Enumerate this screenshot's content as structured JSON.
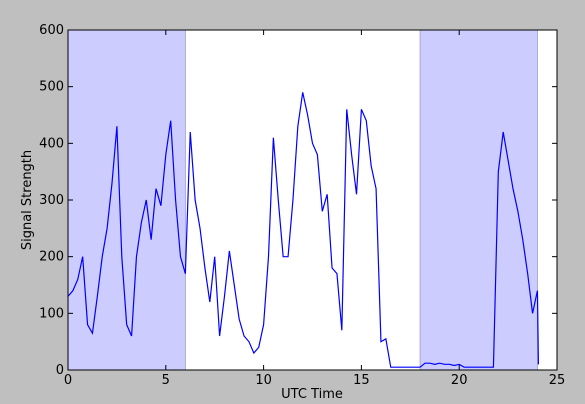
{
  "chart_data": {
    "type": "line",
    "xlabel": "UTC Time",
    "ylabel": "Signal Strength",
    "x": [
      0,
      0.25,
      0.5,
      0.75,
      1,
      1.25,
      1.5,
      1.75,
      2,
      2.25,
      2.5,
      2.75,
      3,
      3.25,
      3.5,
      3.75,
      4,
      4.25,
      4.5,
      4.75,
      5,
      5.25,
      5.5,
      5.75,
      6,
      6.25,
      6.5,
      6.75,
      7,
      7.25,
      7.5,
      7.75,
      8,
      8.25,
      8.5,
      8.75,
      9,
      9.25,
      9.5,
      9.75,
      10,
      10.25,
      10.5,
      10.75,
      11,
      11.25,
      11.5,
      11.75,
      12,
      12.25,
      12.5,
      12.75,
      13,
      13.25,
      13.5,
      13.75,
      14,
      14.25,
      14.5,
      14.75,
      15,
      15.25,
      15.5,
      15.75,
      16,
      16.25,
      16.5,
      16.75,
      17,
      17.25,
      17.5,
      17.75,
      18,
      18.25,
      18.5,
      18.75,
      19,
      19.25,
      19.5,
      19.75,
      20,
      20.25,
      20.5,
      20.75,
      21,
      21.25,
      21.5,
      21.75,
      22,
      22.25,
      22.5,
      22.75,
      23,
      23.25,
      23.5,
      23.75,
      24,
      24.05
    ],
    "values": [
      130,
      140,
      160,
      200,
      80,
      65,
      130,
      200,
      250,
      330,
      430,
      200,
      80,
      60,
      200,
      260,
      300,
      230,
      320,
      290,
      380,
      440,
      300,
      200,
      170,
      420,
      300,
      250,
      180,
      120,
      200,
      60,
      130,
      210,
      150,
      90,
      60,
      50,
      30,
      40,
      80,
      200,
      410,
      300,
      200,
      200,
      300,
      430,
      490,
      450,
      400,
      380,
      280,
      310,
      180,
      170,
      70,
      460,
      380,
      310,
      460,
      440,
      360,
      320,
      50,
      55,
      5,
      5,
      5,
      5,
      5,
      5,
      5,
      12,
      12,
      10,
      12,
      10,
      10,
      8,
      10,
      5,
      5,
      5,
      5,
      5,
      5,
      5,
      350,
      420,
      370,
      320,
      280,
      230,
      170,
      100,
      140,
      10
    ],
    "color": "#0000ff",
    "spans": [
      [
        0,
        6
      ],
      [
        18,
        24
      ]
    ],
    "span_color": "#ccccff",
    "xlim": [
      0,
      25
    ],
    "ylim": [
      0,
      600
    ],
    "xticks": [
      0,
      5,
      10,
      15,
      20,
      25
    ],
    "yticks": [
      0,
      100,
      200,
      300,
      400,
      500,
      600
    ]
  }
}
